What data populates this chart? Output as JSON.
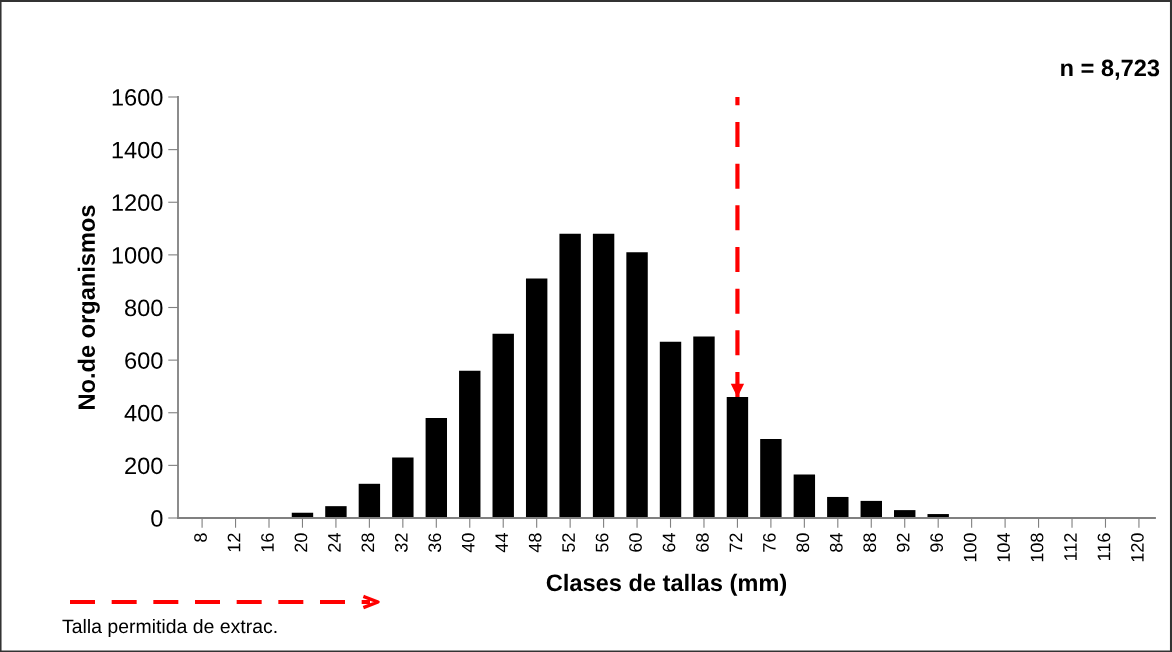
{
  "chart_data": {
    "type": "bar",
    "xlabel": "Clases de tallas (mm)",
    "ylabel": "No.de organismos",
    "categories": [
      "8",
      "12",
      "16",
      "20",
      "24",
      "28",
      "32",
      "36",
      "40",
      "44",
      "48",
      "52",
      "56",
      "60",
      "64",
      "68",
      "72",
      "76",
      "80",
      "84",
      "88",
      "92",
      "96",
      "100",
      "104",
      "108",
      "112",
      "116",
      "120"
    ],
    "values": [
      0,
      0,
      0,
      20,
      45,
      130,
      230,
      380,
      560,
      700,
      910,
      1080,
      1080,
      1010,
      670,
      690,
      460,
      300,
      165,
      80,
      65,
      30,
      15,
      0,
      0,
      0,
      0,
      0,
      0
    ],
    "color": "#000000",
    "ylim": [
      0,
      1600
    ],
    "yticks": [
      0,
      200,
      400,
      600,
      800,
      1000,
      1200,
      1400,
      1600
    ],
    "grid": false,
    "ref_lines": [
      {
        "axis": "x",
        "value": "72",
        "color": "#ff0000",
        "line_style": "dashed"
      }
    ],
    "annotations": [
      "n = 8,723",
      "Talla permitida de extrac."
    ]
  }
}
